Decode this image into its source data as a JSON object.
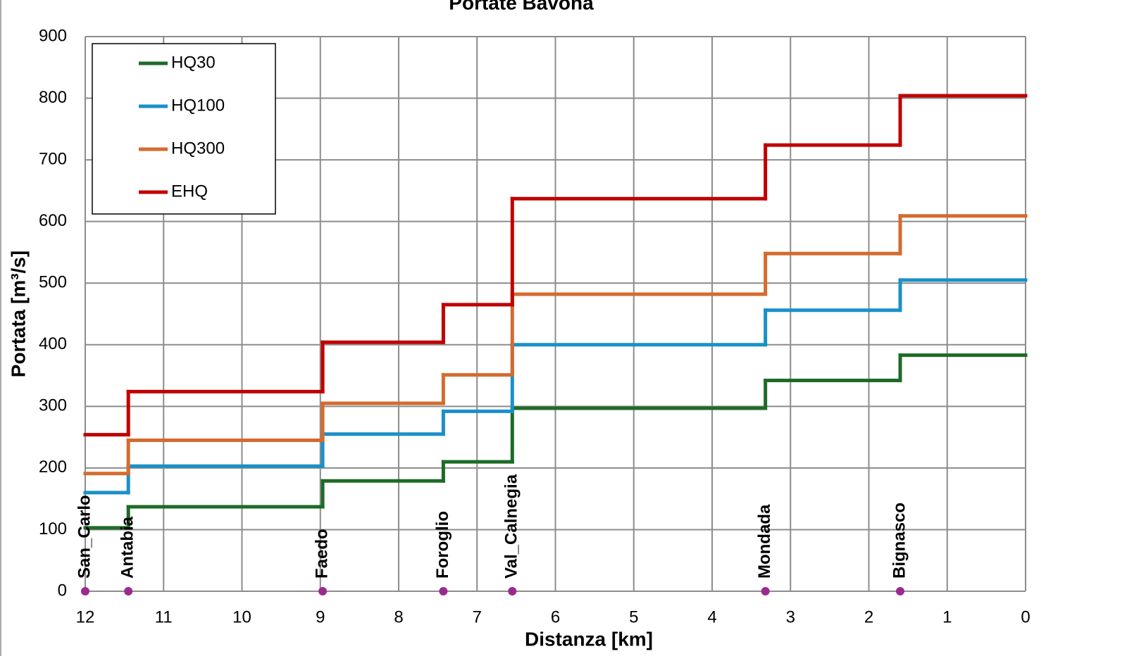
{
  "chart_data": {
    "type": "step",
    "title": "Portate Bavona",
    "x_label": "Distanza [km]",
    "y_label": "Portata [m³/s]",
    "x": [
      12,
      11.45,
      8.97,
      7.43,
      6.55,
      3.32,
      1.6
    ],
    "station_labels": [
      "San_Carlo",
      "Antabia",
      "Faedo",
      "Foroglio",
      "Val_Calnegia",
      "Mondada",
      "Bignasco"
    ],
    "station_color": "#9b2a8f",
    "series": [
      {
        "name": "HQ30",
        "color": "#1e6b27",
        "values": [
          103,
          137,
          179,
          210,
          297,
          342,
          383
        ]
      },
      {
        "name": "HQ100",
        "color": "#1a90c8",
        "values": [
          160,
          203,
          255,
          292,
          400,
          456,
          505
        ]
      },
      {
        "name": "HQ300",
        "color": "#d46b2e",
        "values": [
          191,
          245,
          305,
          351,
          482,
          548,
          609
        ]
      },
      {
        "name": "EHQ",
        "color": "#c00000",
        "values": [
          254,
          324,
          404,
          465,
          637,
          724,
          804
        ]
      }
    ],
    "xlim": [
      12,
      0
    ],
    "xticks": [
      12,
      11,
      10,
      9,
      8,
      7,
      6,
      5,
      4,
      3,
      2,
      1,
      0
    ],
    "ylim": [
      0,
      900
    ],
    "yticks": [
      0,
      100,
      200,
      300,
      400,
      500,
      600,
      700,
      800,
      900
    ],
    "grid": true,
    "legend": "upper-left"
  }
}
